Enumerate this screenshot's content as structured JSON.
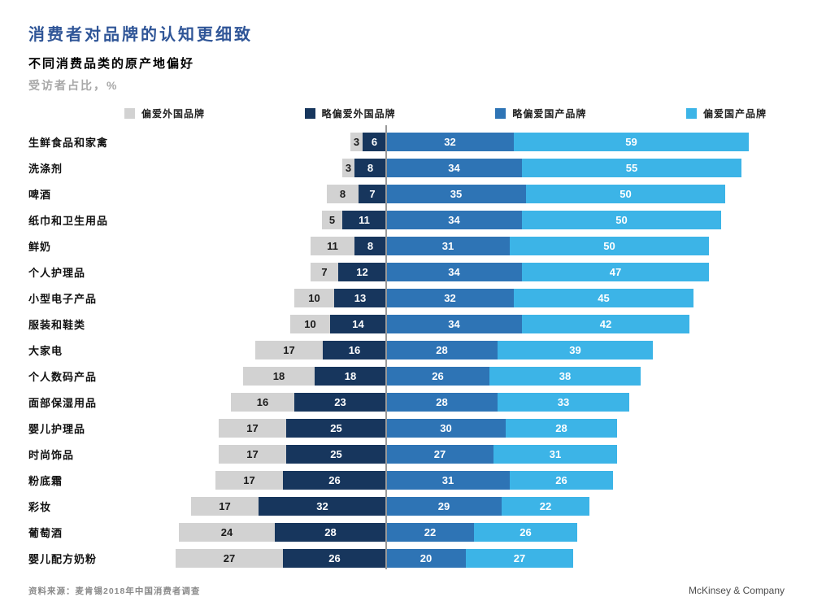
{
  "header": {
    "title": "消费者对品牌的认知更细致",
    "subtitle": "不同消费品类的原产地偏好",
    "unit_label": "受访者占比，%"
  },
  "legend": [
    {
      "label": "偏爱外国品牌",
      "color": "#d2d2d2"
    },
    {
      "label": "略偏爱外国品牌",
      "color": "#17365d"
    },
    {
      "label": "略偏爱国产品牌",
      "color": "#2e74b5"
    },
    {
      "label": "偏爱国产品牌",
      "color": "#3cb4e7"
    }
  ],
  "chart_data": {
    "type": "bar",
    "variant": "horizontal-diverging-stacked",
    "unit": "%",
    "axis_divider_color": "#999999",
    "categories": [
      "生鲜食品和家禽",
      "洗涤剂",
      "啤酒",
      "纸巾和卫生用品",
      "鲜奶",
      "个人护理品",
      "小型电子产品",
      "服装和鞋类",
      "大家电",
      "个人数码产品",
      "面部保湿用品",
      "婴儿护理品",
      "时尚饰品",
      "粉底霜",
      "彩妆",
      "葡萄酒",
      "婴儿配方奶粉"
    ],
    "series": [
      {
        "name": "偏爱外国品牌",
        "color": "#d2d2d2",
        "side": "left",
        "values": [
          3,
          3,
          8,
          5,
          11,
          7,
          10,
          10,
          17,
          18,
          16,
          17,
          17,
          17,
          17,
          24,
          27
        ]
      },
      {
        "name": "略偏爱外国品牌",
        "color": "#17365d",
        "side": "left",
        "values": [
          6,
          8,
          7,
          11,
          8,
          12,
          13,
          14,
          16,
          18,
          23,
          25,
          25,
          26,
          32,
          28,
          26
        ]
      },
      {
        "name": "略偏爱国产品牌",
        "color": "#2e74b5",
        "side": "right",
        "values": [
          32,
          34,
          35,
          34,
          31,
          34,
          32,
          34,
          28,
          26,
          28,
          30,
          27,
          31,
          29,
          22,
          20
        ]
      },
      {
        "name": "偏爱国产品牌",
        "color": "#3cb4e7",
        "side": "right",
        "values": [
          59,
          55,
          50,
          50,
          50,
          47,
          45,
          42,
          39,
          38,
          33,
          28,
          31,
          26,
          22,
          26,
          27
        ]
      }
    ]
  },
  "footer": {
    "source": "资料来源：麦肯锡2018年中国消费者调查",
    "brand": "McKinsey & Company"
  }
}
